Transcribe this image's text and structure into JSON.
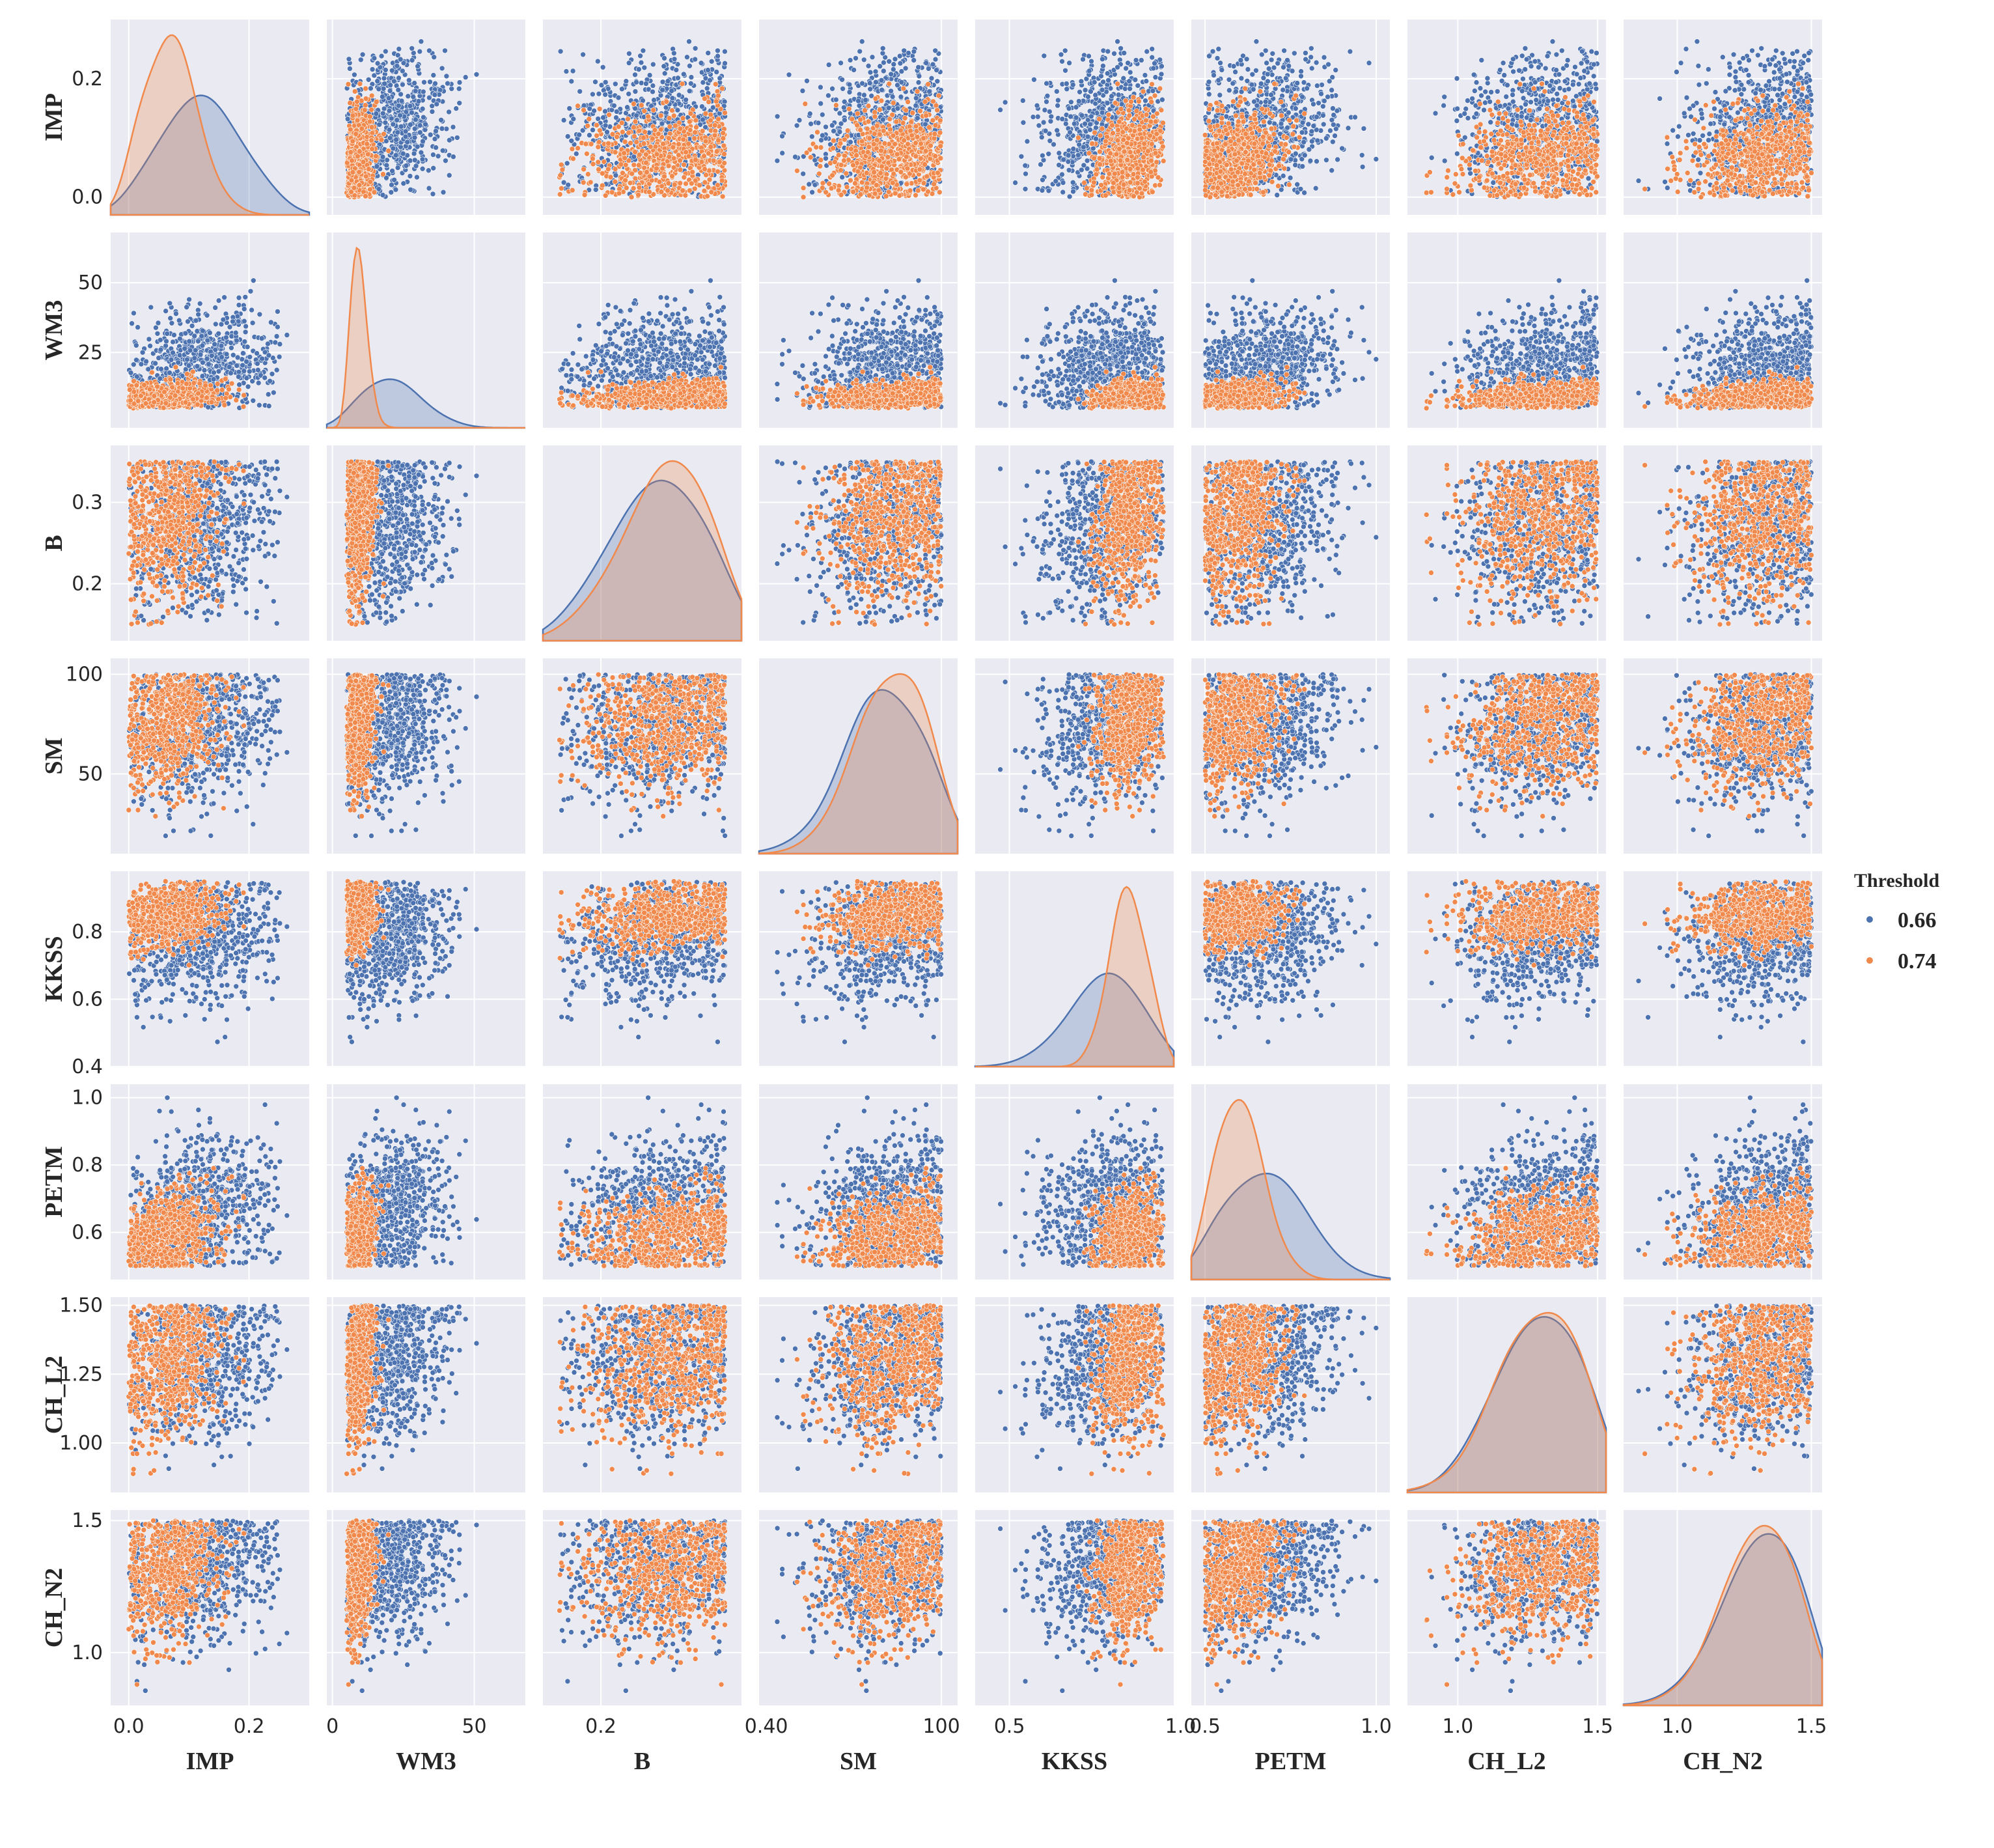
{
  "chart_data": {
    "type": "scatter",
    "subtype": "pairplot",
    "diag_kind": "kde",
    "background_color": "#eaeaf2",
    "grid": true,
    "legend": {
      "title": "Threshold",
      "placement": "right",
      "entries": [
        {
          "label": "0.66",
          "color": "#4c72b0"
        },
        {
          "label": "0.74",
          "color": "#f0894b"
        }
      ]
    },
    "variables": [
      {
        "name": "IMP",
        "range": [
          0.0,
          0.27
        ],
        "lim": [
          -0.03,
          0.3
        ],
        "ticks": [
          "0.0",
          "0.2"
        ],
        "tick_values": [
          0.0,
          0.2
        ]
      },
      {
        "name": "WM3",
        "range": [
          5,
          62
        ],
        "lim": [
          -2,
          68
        ],
        "ticks": [
          "0",
          "50"
        ],
        "tick_values": [
          0,
          50
        ]
      },
      {
        "name": "B",
        "range": [
          0.15,
          0.35
        ],
        "lim": [
          0.13,
          0.37
        ],
        "ticks": [
          "0.2",
          "0.3",
          "0.4"
        ],
        "tick_values": [
          0.2,
          0.3,
          0.4
        ]
      },
      {
        "name": "SM",
        "range": [
          18,
          100
        ],
        "lim": [
          10,
          108
        ],
        "ticks": [
          "0",
          "50",
          "100"
        ],
        "tick_values": [
          0,
          50,
          100
        ]
      },
      {
        "name": "KKSS",
        "range": [
          0.43,
          0.95
        ],
        "lim": [
          0.4,
          0.98
        ],
        "ticks": [
          "0.4",
          "0.5",
          "0.6",
          "0.8",
          "1.0"
        ],
        "tick_values": [
          0.4,
          0.5,
          0.6,
          0.8,
          1.0
        ]
      },
      {
        "name": "PETM",
        "range": [
          0.5,
          1.0
        ],
        "lim": [
          0.46,
          1.04
        ],
        "ticks": [
          "0.5",
          "0.6",
          "0.8",
          "1.0"
        ],
        "tick_values": [
          0.5,
          0.6,
          0.8,
          1.0
        ]
      },
      {
        "name": "CH_L2",
        "range": [
          0.85,
          1.5
        ],
        "lim": [
          0.82,
          1.53
        ],
        "ticks": [
          "1.00",
          "1.25",
          "1.50",
          "1.0",
          "1.5"
        ],
        "tick_values": [
          1.0,
          1.25,
          1.5,
          1.0,
          1.5
        ]
      },
      {
        "name": "CH_N2",
        "range": [
          0.84,
          1.5
        ],
        "lim": [
          0.8,
          1.54
        ],
        "ticks": [
          "1.0",
          "1.5"
        ],
        "tick_values": [
          1.0,
          1.5
        ]
      }
    ],
    "y_tick_labels": [
      [
        "0.0",
        "0.2"
      ],
      [
        "25",
        "50"
      ],
      [
        "0.2",
        "0.3"
      ],
      [
        "50",
        "100"
      ],
      [
        "0.4",
        "0.6",
        "0.8"
      ],
      [
        "0.6",
        "0.8",
        "1.0"
      ],
      [
        "1.00",
        "1.25",
        "1.50"
      ],
      [
        "1.0",
        "1.5"
      ]
    ],
    "y_tick_values": [
      [
        0.0,
        0.2
      ],
      [
        25,
        50
      ],
      [
        0.2,
        0.3
      ],
      [
        50,
        100
      ],
      [
        0.4,
        0.6,
        0.8
      ],
      [
        0.6,
        0.8,
        1.0
      ],
      [
        1.0,
        1.25,
        1.5
      ],
      [
        1.0,
        1.5
      ]
    ],
    "x_tick_labels": [
      [
        "0.0",
        "0.2"
      ],
      [
        "0",
        "50"
      ],
      [
        "0.2",
        "0.40"
      ],
      [
        "100"
      ],
      [
        "0.5",
        "1.0"
      ],
      [
        "0.5",
        "1.0"
      ],
      [
        "1.0",
        "1.5"
      ],
      [
        "1.0",
        "1.5"
      ]
    ],
    "x_tick_values": [
      [
        0.0,
        0.2
      ],
      [
        0,
        50
      ],
      [
        0.2,
        0.4
      ],
      [
        100
      ],
      [
        0.5,
        1.0
      ],
      [
        0.5,
        1.0
      ],
      [
        1.0,
        1.5
      ],
      [
        1.0,
        1.5
      ]
    ],
    "series": [
      {
        "name": "0.66",
        "color": "#4c72b0",
        "means": [
          0.12,
          20,
          0.27,
          72,
          0.78,
          0.68,
          1.3,
          1.32
        ],
        "stds": [
          0.06,
          10,
          0.055,
          19,
          0.1,
          0.11,
          0.15,
          0.14
        ]
      },
      {
        "name": "0.74",
        "color": "#f0894b",
        "means": [
          0.07,
          9,
          0.28,
          75,
          0.85,
          0.6,
          1.3,
          1.32
        ],
        "stds": [
          0.04,
          3,
          0.05,
          17,
          0.05,
          0.07,
          0.14,
          0.13
        ]
      }
    ],
    "points_per_series": 700
  }
}
